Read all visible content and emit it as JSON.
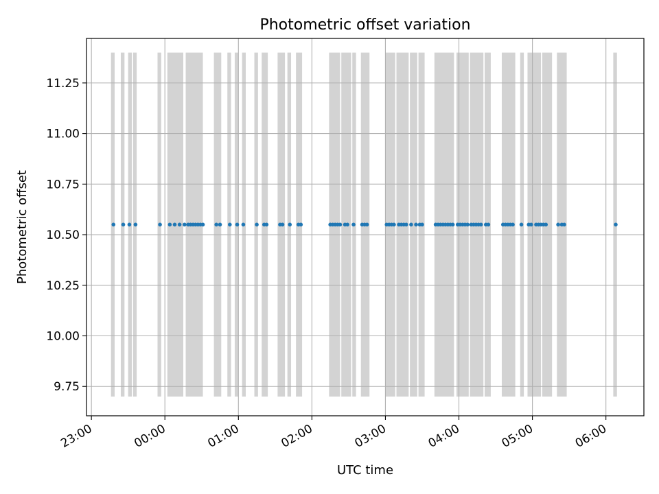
{
  "chart_data": {
    "type": "scatter",
    "title": "Photometric offset variation",
    "xlabel": "UTC time",
    "ylabel": "Photometric offset",
    "x_unit": "UTC HH:MM (times after midnight are on the following day)",
    "xlim": [
      "22:56",
      "06:31"
    ],
    "ylim": [
      9.605,
      11.47
    ],
    "grid": true,
    "x_ticks": [
      "23:00",
      "00:00",
      "01:00",
      "02:00",
      "03:00",
      "04:00",
      "05:00",
      "06:00"
    ],
    "y_ticks": [
      9.75,
      10.0,
      10.25,
      10.5,
      10.75,
      11.0,
      11.25
    ],
    "y_tick_labels": [
      "9.75",
      "10.00",
      "10.25",
      "10.50",
      "10.75",
      "11.00",
      "11.25"
    ],
    "point_color": "#1f77b4",
    "band_color": "#d3d3d3",
    "bands": {
      "y_range": [
        9.7,
        11.4
      ],
      "intervals": [
        [
          "23:16",
          "23:19"
        ],
        [
          "23:24",
          "23:27"
        ],
        [
          "23:30",
          "23:33"
        ],
        [
          "23:34",
          "23:37"
        ],
        [
          "23:54",
          "23:57"
        ],
        [
          "00:02",
          "00:15"
        ],
        [
          "00:17",
          "00:31"
        ],
        [
          "00:40",
          "00:46"
        ],
        [
          "00:51",
          "00:54"
        ],
        [
          "00:57",
          "01:00"
        ],
        [
          "01:03",
          "01:06"
        ],
        [
          "01:13",
          "01:16"
        ],
        [
          "01:19",
          "01:24"
        ],
        [
          "01:32",
          "01:38"
        ],
        [
          "01:40",
          "01:43"
        ],
        [
          "01:47",
          "01:52"
        ],
        [
          "02:14",
          "02:23"
        ],
        [
          "02:24",
          "02:32"
        ],
        [
          "02:33",
          "02:36"
        ],
        [
          "02:40",
          "02:47"
        ],
        [
          "03:00",
          "03:08"
        ],
        [
          "03:09",
          "03:19"
        ],
        [
          "03:20",
          "03:26"
        ],
        [
          "03:27",
          "03:32"
        ],
        [
          "03:40",
          "03:56"
        ],
        [
          "03:58",
          "04:08"
        ],
        [
          "04:09",
          "04:20"
        ],
        [
          "04:21",
          "04:26"
        ],
        [
          "04:35",
          "04:46"
        ],
        [
          "04:50",
          "04:53"
        ],
        [
          "04:56",
          "05:07"
        ],
        [
          "05:08",
          "05:16"
        ],
        [
          "05:20",
          "05:28"
        ],
        [
          "06:06",
          "06:09"
        ]
      ]
    },
    "series": [
      {
        "x": [
          "23:18",
          "23:26",
          "23:31",
          "23:36",
          "23:56",
          "00:04",
          "00:08",
          "00:12",
          "00:16",
          "00:19",
          "00:21",
          "00:23",
          "00:25",
          "00:27",
          "00:29",
          "00:31",
          "00:42",
          "00:45",
          "00:53",
          "00:59",
          "01:04",
          "01:15",
          "01:21",
          "01:23",
          "01:34",
          "01:36",
          "01:42",
          "01:49",
          "01:51",
          "02:15",
          "02:17",
          "02:19",
          "02:21",
          "02:23",
          "02:27",
          "02:29",
          "02:34",
          "02:41",
          "02:43",
          "02:45",
          "03:01",
          "03:03",
          "03:05",
          "03:07",
          "03:11",
          "03:13",
          "03:15",
          "03:17",
          "03:21",
          "03:25",
          "03:28",
          "03:30",
          "03:41",
          "03:43",
          "03:45",
          "03:47",
          "03:49",
          "03:51",
          "03:53",
          "03:55",
          "03:59",
          "04:01",
          "04:03",
          "04:05",
          "04:07",
          "04:10",
          "04:12",
          "04:14",
          "04:16",
          "04:18",
          "04:22",
          "04:24",
          "04:36",
          "04:38",
          "04:40",
          "04:42",
          "04:44",
          "04:51",
          "04:57",
          "04:59",
          "05:03",
          "05:05",
          "05:07",
          "05:09",
          "05:11",
          "05:21",
          "05:24",
          "05:26",
          "06:08"
        ],
        "y": [
          10.55,
          10.55,
          10.55,
          10.55,
          10.55,
          10.55,
          10.55,
          10.55,
          10.55,
          10.55,
          10.55,
          10.55,
          10.55,
          10.55,
          10.55,
          10.55,
          10.55,
          10.55,
          10.55,
          10.55,
          10.55,
          10.55,
          10.55,
          10.55,
          10.55,
          10.55,
          10.55,
          10.55,
          10.55,
          10.55,
          10.55,
          10.55,
          10.55,
          10.55,
          10.55,
          10.55,
          10.55,
          10.55,
          10.55,
          10.55,
          10.55,
          10.55,
          10.55,
          10.55,
          10.55,
          10.55,
          10.55,
          10.55,
          10.55,
          10.55,
          10.55,
          10.55,
          10.55,
          10.55,
          10.55,
          10.55,
          10.55,
          10.55,
          10.55,
          10.55,
          10.55,
          10.55,
          10.55,
          10.55,
          10.55,
          10.55,
          10.55,
          10.55,
          10.55,
          10.55,
          10.55,
          10.55,
          10.55,
          10.55,
          10.55,
          10.55,
          10.55,
          10.55,
          10.55,
          10.55,
          10.55,
          10.55,
          10.55,
          10.55,
          10.55,
          10.55,
          10.55,
          10.55,
          10.55
        ]
      }
    ]
  }
}
